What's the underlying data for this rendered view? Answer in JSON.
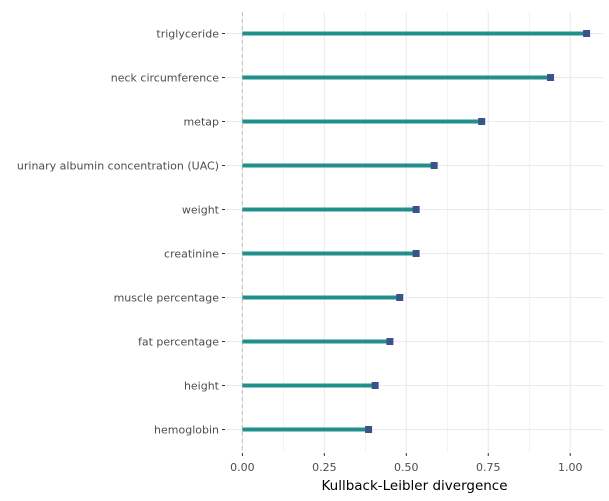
{
  "chart_data": {
    "type": "bar",
    "orientation": "horizontal",
    "style": "lollipop",
    "title": "",
    "xlabel": "Kullback-Leibler divergence",
    "ylabel": "",
    "categories": [
      "triglyceride",
      "neck circumference",
      "metap",
      "urinary albumin concentration (UAC)",
      "weight",
      "creatinine",
      "muscle percentage",
      "fat percentage",
      "height",
      "hemoglobin"
    ],
    "values": [
      1.05,
      0.94,
      0.73,
      0.585,
      0.53,
      0.53,
      0.48,
      0.45,
      0.405,
      0.385
    ],
    "xlim": [
      -0.05,
      1.1
    ],
    "xticks": [
      0.0,
      0.25,
      0.5,
      0.75,
      1.0
    ],
    "xtick_labels": [
      "0.00",
      "0.25",
      "0.50",
      "0.75",
      "1.00"
    ],
    "grid": true,
    "reference_line_x": 0,
    "legend": "none",
    "colors": {
      "bar": "#21908c",
      "marker": "#3b528b",
      "grid": "#ebebeb",
      "reference_line": "#c8c8c8",
      "tick_text": "#4d4d4d"
    }
  }
}
